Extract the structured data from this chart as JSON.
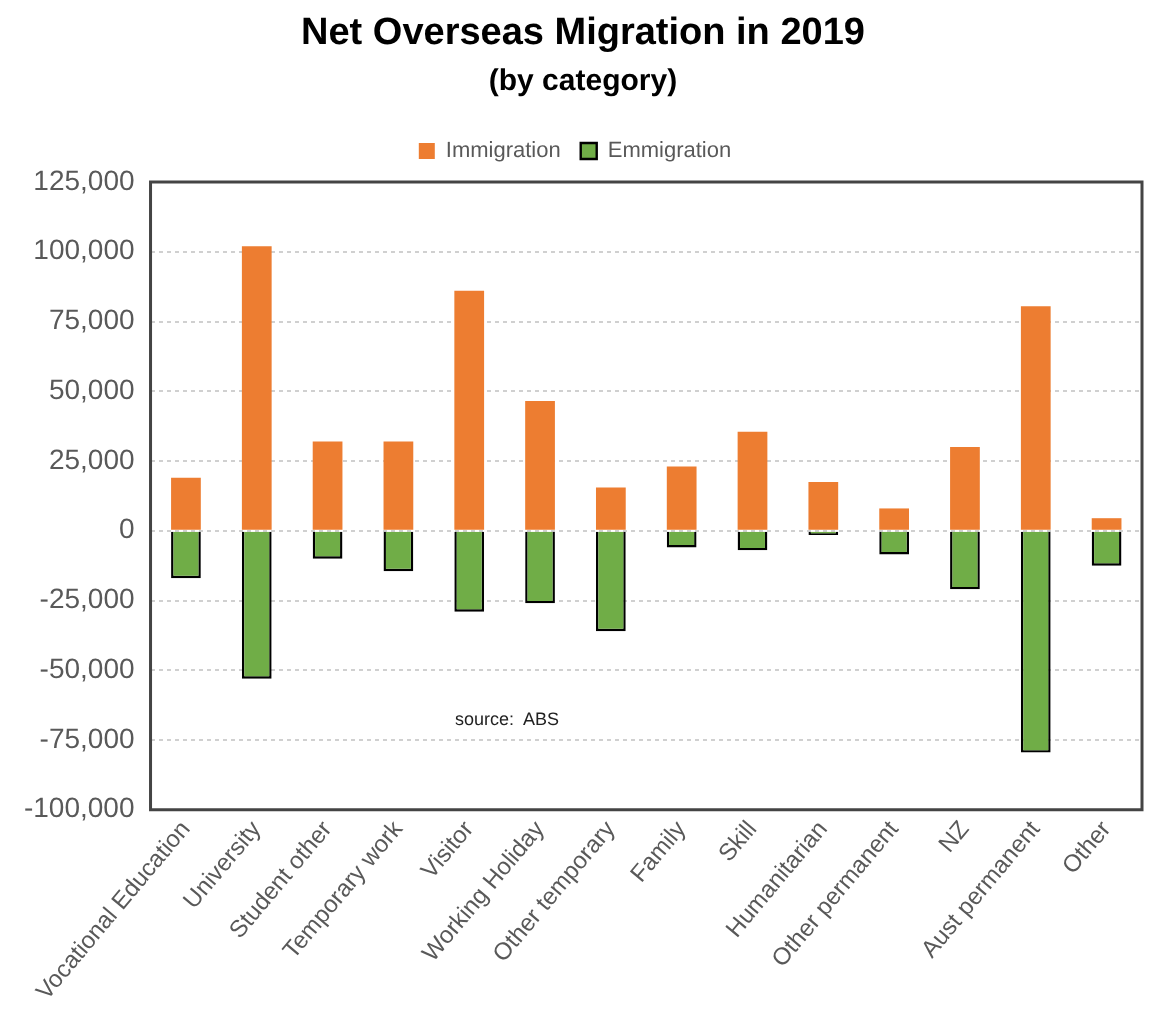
{
  "chart_data": {
    "type": "bar",
    "title": "Net Overseas Migration in 2019",
    "subtitle": "(by category)",
    "categories": [
      "Vocational Education",
      "University",
      "Student other",
      "Temporary work",
      "Visitor",
      "Working Holiday",
      "Other temporary",
      "Family",
      "Skill",
      "Humanitarian",
      "Other permanent",
      "NZ",
      "Aust permanent",
      "Other"
    ],
    "series": [
      {
        "name": "Immigration",
        "color": "#ed7d31",
        "values": [
          19000,
          102000,
          32000,
          32000,
          86000,
          46500,
          15500,
          23000,
          35500,
          17500,
          8000,
          30000,
          80500,
          4500
        ]
      },
      {
        "name": "Emmigration",
        "color": "#70ad47",
        "values": [
          -17000,
          -53000,
          -10000,
          -14500,
          -29000,
          -26000,
          -36000,
          -6000,
          -7000,
          -1500,
          -8500,
          -21000,
          -79500,
          -12500
        ]
      }
    ],
    "stacked": true,
    "ylim": [
      -100000,
      125000
    ],
    "yticks": [
      {
        "value": -100000,
        "label": "-100,000"
      },
      {
        "value": -75000,
        "label": "-75,000"
      },
      {
        "value": -50000,
        "label": "-50,000"
      },
      {
        "value": -25000,
        "label": "-25,000"
      },
      0,
      {
        "value": 25000,
        "label": "25,000"
      },
      {
        "value": 50000,
        "label": "50,000"
      },
      {
        "value": 75000,
        "label": "75,000"
      },
      {
        "value": 100000,
        "label": "100,000"
      },
      {
        "value": 125000,
        "label": "125,000"
      }
    ],
    "grid": "y",
    "legend": "top",
    "annotations": [
      "source:  ABS"
    ]
  }
}
